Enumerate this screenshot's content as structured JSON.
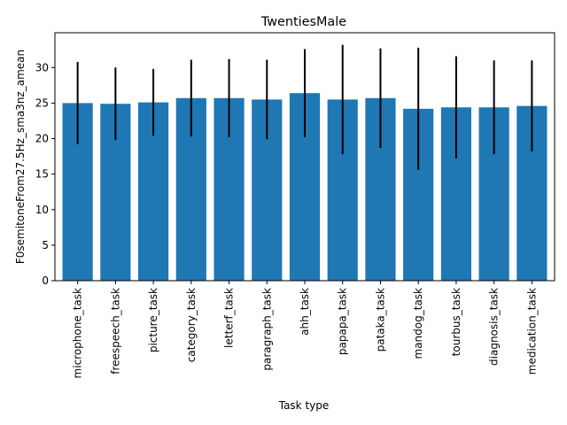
{
  "chart_data": {
    "type": "bar",
    "title": "TwentiesMale",
    "xlabel": "Task type",
    "ylabel": "F0semitoneFrom27.5Hz_sma3nz_amean",
    "categories": [
      "microphone_task",
      "freespeech_task",
      "picture_task",
      "category_task",
      "letterf_task",
      "paragraph_task",
      "ahh_task",
      "papapa_task",
      "pataka_task",
      "mandog_task",
      "tourbus_task",
      "diagnosis_task",
      "medication_task"
    ],
    "values": [
      25.0,
      24.9,
      25.1,
      25.7,
      25.7,
      25.5,
      26.4,
      25.5,
      25.7,
      24.2,
      24.4,
      24.4,
      24.6
    ],
    "error": [
      5.8,
      5.1,
      4.7,
      5.4,
      5.5,
      5.6,
      6.2,
      7.7,
      7.0,
      8.6,
      7.2,
      6.6,
      6.4
    ],
    "yticks": [
      0,
      5,
      10,
      15,
      20,
      25,
      30
    ],
    "ylim": [
      0,
      34.9
    ],
    "bar_color": "#1f77b4",
    "errorbar_color": "#000000",
    "grid": false,
    "legend": "none"
  }
}
